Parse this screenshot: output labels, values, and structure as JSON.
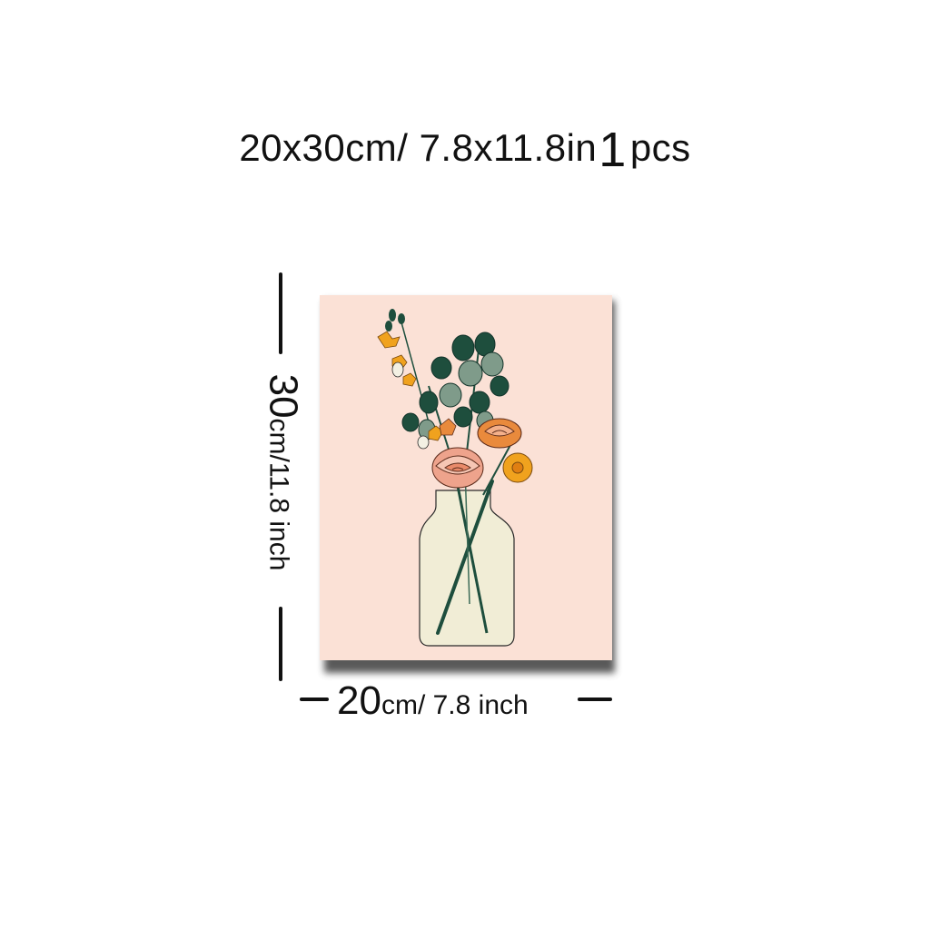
{
  "title": {
    "size_text": "20x30cm/ 7.8x11.8in",
    "quantity_number": "1",
    "quantity_unit": "pcs"
  },
  "dimensions": {
    "height_value": "30",
    "height_unit": "cm/11.8 inch",
    "width_value": "20",
    "width_unit": "cm/ 7.8 inch"
  },
  "artwork": {
    "subject": "botanical bouquet in glass vase",
    "colors": {
      "background": "#fbe1d6",
      "vase": "#f1edd6",
      "leaf_dark": "#1e4e3d",
      "leaf_light": "#7f9b8a",
      "orange": "#e98a3c",
      "yellow": "#f0a21e",
      "rose": "#eea38c"
    }
  }
}
